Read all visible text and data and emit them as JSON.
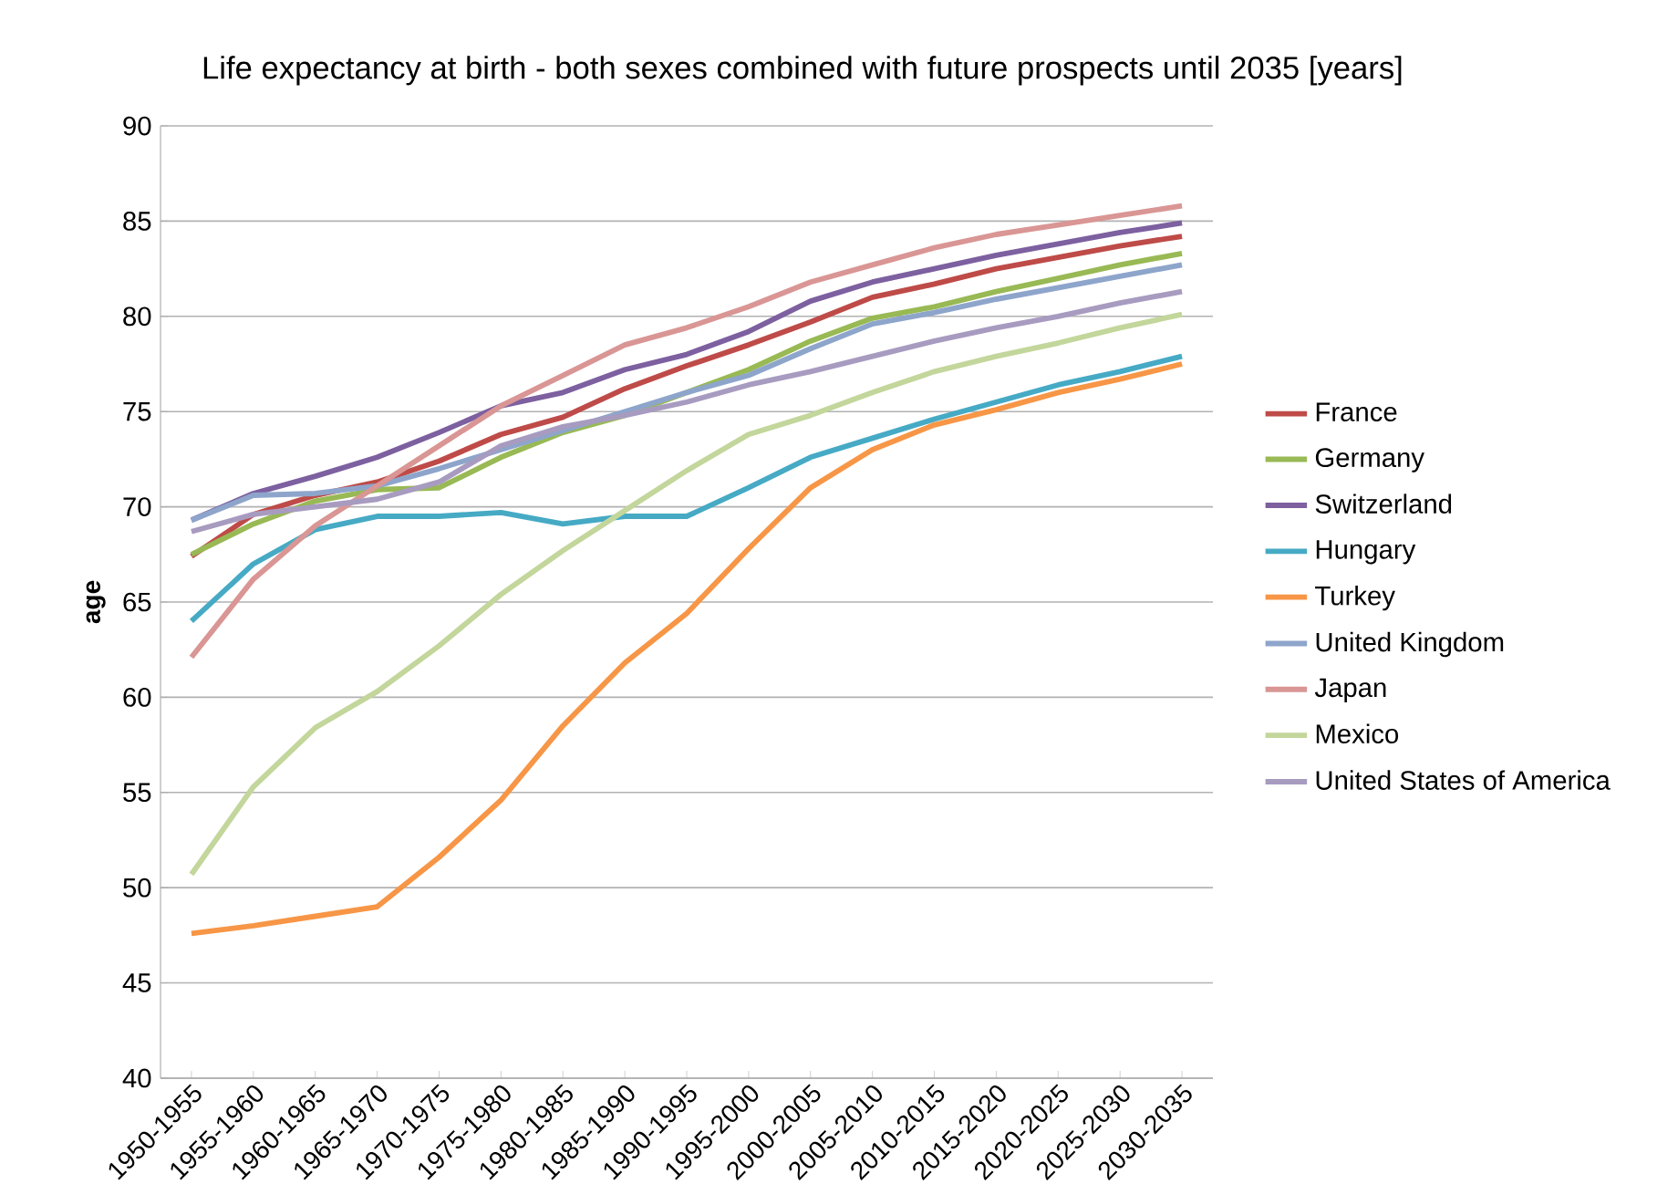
{
  "chart_data": {
    "type": "line",
    "title": "Life expectancy at birth - both sexes combined with future prospects until 2035 [years]",
    "ylabel": "age",
    "categories": [
      "1950-1955",
      "1955-1960",
      "1960-1965",
      "1965-1970",
      "1970-1975",
      "1975-1980",
      "1980-1985",
      "1985-1990",
      "1990-1995",
      "1995-2000",
      "2000-2005",
      "2005-2010",
      "2010-2015",
      "2015-2020",
      "2020-2025",
      "2025-2030",
      "2030-2035"
    ],
    "ylim": [
      40,
      90
    ],
    "yticks": [
      40,
      45,
      50,
      55,
      60,
      65,
      70,
      75,
      80,
      85,
      90
    ],
    "grid": "y",
    "legend": "right",
    "marker": "none",
    "series": [
      {
        "name": "France",
        "color": "#be4b48",
        "values": [
          67.4,
          69.6,
          70.6,
          71.3,
          72.4,
          73.8,
          74.7,
          76.2,
          77.4,
          78.5,
          79.7,
          81.0,
          81.7,
          82.5,
          83.1,
          83.7,
          84.2
        ]
      },
      {
        "name": "Germany",
        "color": "#98b954",
        "values": [
          67.5,
          69.1,
          70.3,
          70.9,
          71.0,
          72.6,
          73.9,
          74.8,
          76.0,
          77.2,
          78.7,
          79.9,
          80.5,
          81.3,
          82.0,
          82.7,
          83.3
        ]
      },
      {
        "name": "Switzerland",
        "color": "#7d60a0",
        "values": [
          69.3,
          70.7,
          71.6,
          72.6,
          73.9,
          75.3,
          76.0,
          77.2,
          78.0,
          79.2,
          80.8,
          81.8,
          82.5,
          83.2,
          83.8,
          84.4,
          84.9
        ]
      },
      {
        "name": "Hungary",
        "color": "#46aac5",
        "values": [
          64.0,
          67.0,
          68.8,
          69.5,
          69.5,
          69.7,
          69.1,
          69.5,
          69.5,
          71.0,
          72.6,
          73.6,
          74.6,
          75.5,
          76.4,
          77.1,
          77.9
        ]
      },
      {
        "name": "Turkey",
        "color": "#f79646",
        "values": [
          47.6,
          48.0,
          48.5,
          49.0,
          51.6,
          54.6,
          58.5,
          61.8,
          64.4,
          67.8,
          71.0,
          73.0,
          74.3,
          75.1,
          76.0,
          76.7,
          77.5
        ]
      },
      {
        "name": "United Kingdom",
        "color": "#8ea5cb",
        "values": [
          69.3,
          70.6,
          70.7,
          71.1,
          72.0,
          73.0,
          74.0,
          75.0,
          76.0,
          76.9,
          78.3,
          79.6,
          80.2,
          80.9,
          81.5,
          82.1,
          82.7
        ]
      },
      {
        "name": "Japan",
        "color": "#d99694",
        "values": [
          62.1,
          66.2,
          69.0,
          71.1,
          73.2,
          75.3,
          76.9,
          78.5,
          79.4,
          80.5,
          81.8,
          82.7,
          83.6,
          84.3,
          84.8,
          85.3,
          85.8
        ]
      },
      {
        "name": "Mexico",
        "color": "#c3d69b",
        "values": [
          50.7,
          55.3,
          58.4,
          60.3,
          62.7,
          65.4,
          67.7,
          69.8,
          71.9,
          73.8,
          74.8,
          76.0,
          77.1,
          77.9,
          78.6,
          79.4,
          80.1
        ]
      },
      {
        "name": "United States of America",
        "color": "#a89bc0",
        "values": [
          68.7,
          69.6,
          70.0,
          70.4,
          71.3,
          73.2,
          74.2,
          74.8,
          75.5,
          76.4,
          77.1,
          77.9,
          78.7,
          79.4,
          80.0,
          80.7,
          81.3
        ]
      }
    ]
  }
}
